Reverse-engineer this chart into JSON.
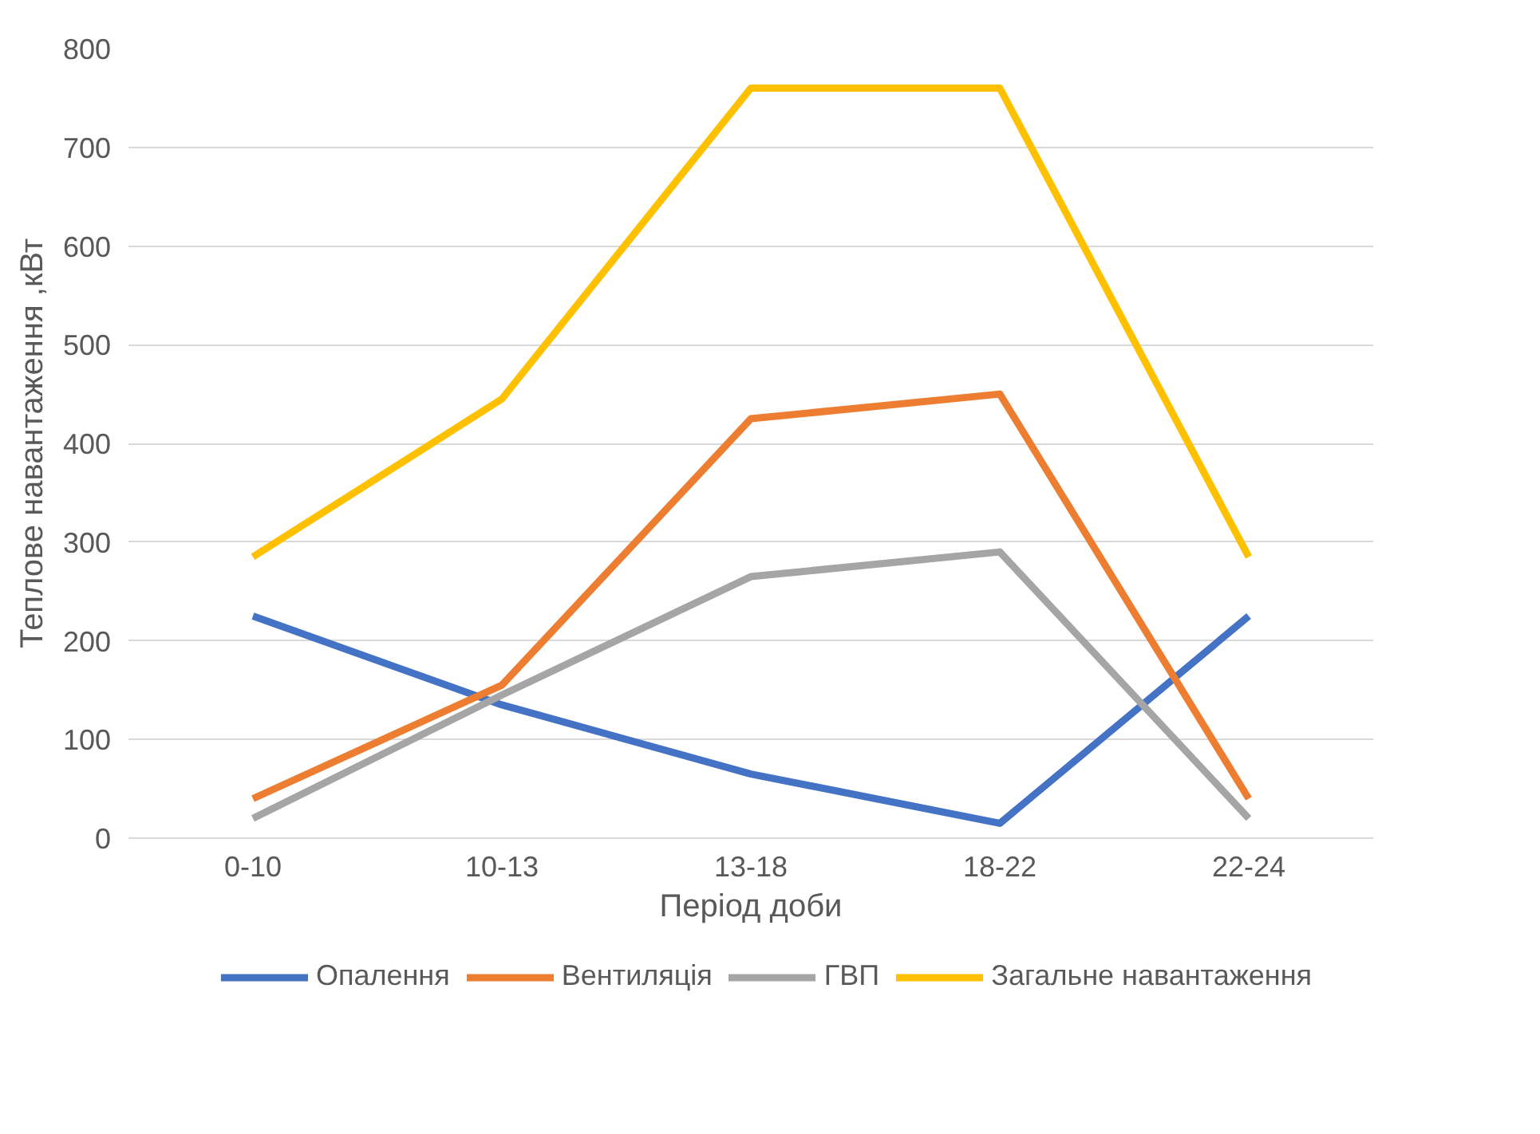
{
  "chart_data": {
    "type": "line",
    "xlabel": "Період доби",
    "ylabel": "Теплове навантаження ,кВт",
    "categories": [
      "0-10",
      "10-13",
      "13-18",
      "18-22",
      "22-24"
    ],
    "series": [
      {
        "name": "Опалення",
        "color": "#4472c4",
        "values": [
          225,
          135,
          65,
          15,
          225
        ]
      },
      {
        "name": "Вентиляція",
        "color": "#ed7d31",
        "values": [
          40,
          155,
          425,
          450,
          40
        ]
      },
      {
        "name": "ГВП",
        "color": "#a5a5a5",
        "values": [
          20,
          145,
          265,
          290,
          20
        ]
      },
      {
        "name": "Загальне навантаження",
        "color": "#ffc000",
        "values": [
          285,
          445,
          760,
          760,
          285
        ]
      }
    ],
    "ylim": [
      0,
      800
    ],
    "yticks": [
      0,
      100,
      200,
      300,
      400,
      500,
      600,
      700,
      800
    ],
    "grid": "y",
    "legend": "bottom",
    "marker": "none",
    "line_style": "solid"
  }
}
